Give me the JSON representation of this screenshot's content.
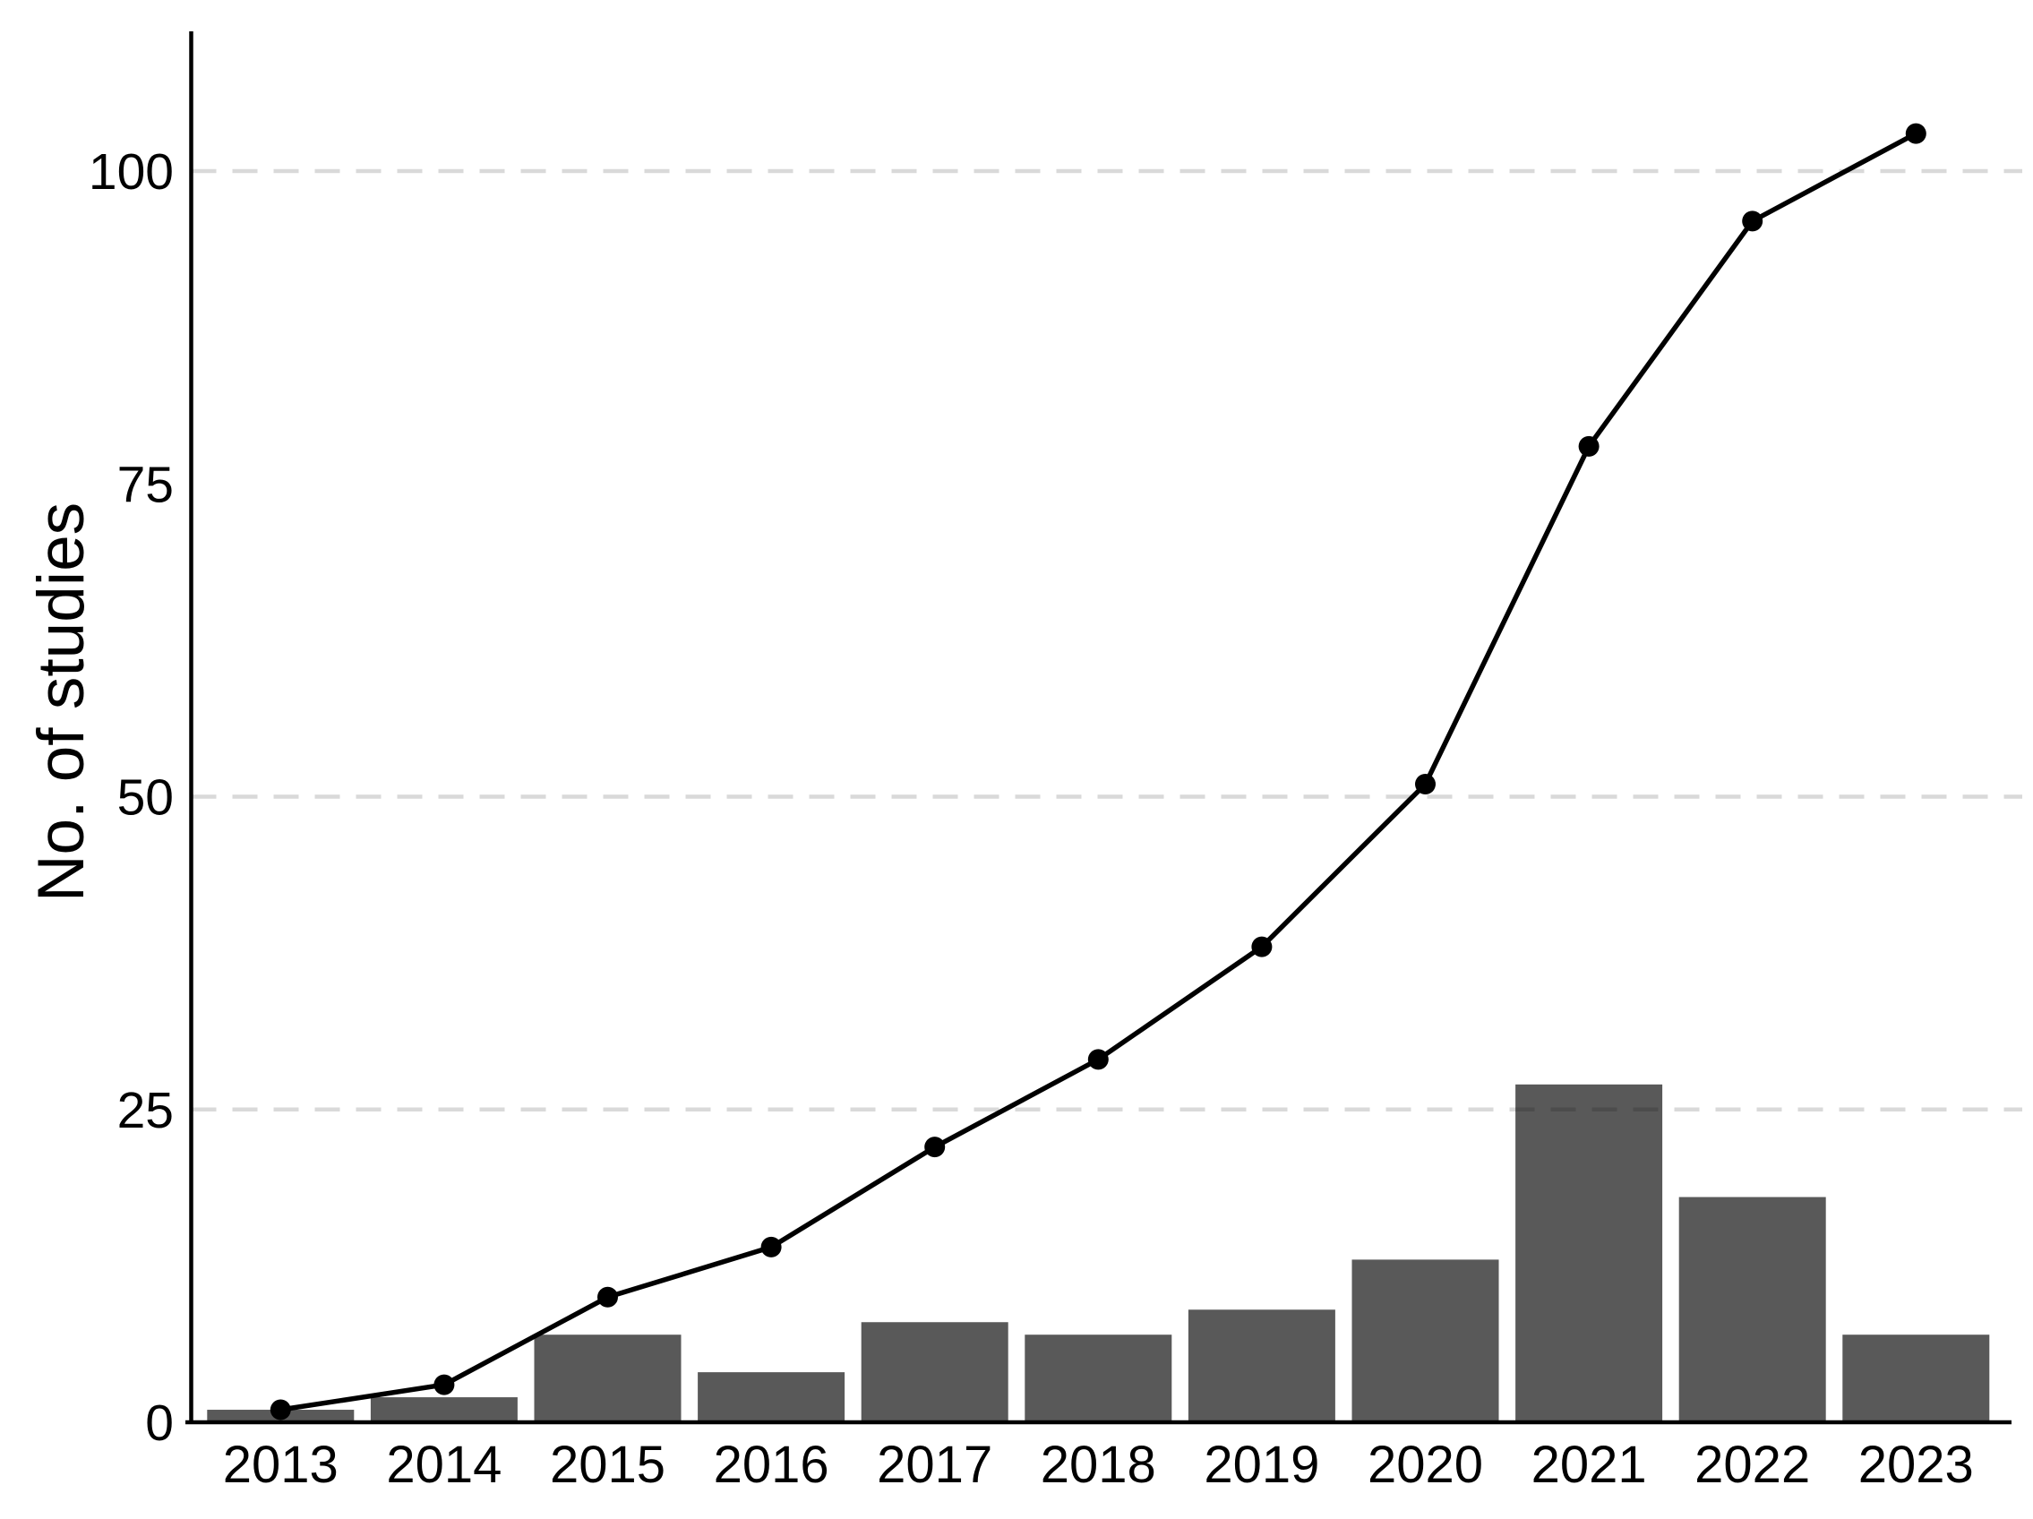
{
  "chart_data": {
    "type": "bar",
    "subtype": "combo-bar-line",
    "title": "",
    "xlabel": "",
    "ylabel": "No. of studies",
    "categories": [
      "2013",
      "2014",
      "2015",
      "2016",
      "2017",
      "2018",
      "2019",
      "2020",
      "2021",
      "2022",
      "2023"
    ],
    "series": [
      {
        "name": "bars-studies-per-year",
        "type": "bar",
        "values": [
          1,
          2,
          7,
          4,
          8,
          7,
          9,
          13,
          27,
          18,
          7
        ]
      },
      {
        "name": "line-cumulative-studies",
        "type": "line",
        "values": [
          1,
          3,
          10,
          14,
          22,
          29,
          38,
          51,
          78,
          96,
          103
        ]
      }
    ],
    "ylim": [
      0,
      111
    ],
    "yticks": [
      0,
      25,
      50,
      75,
      100
    ],
    "gridline_values": [
      25,
      50,
      100
    ],
    "grid_style": "horizontal dashed",
    "legend_position": "none",
    "colors": {
      "bar_fill": "rgba(0,0,0,0.651)",
      "bar_fill_flat": "#595959",
      "line": "#000000",
      "point": "#000000",
      "gridline": "#d9d9d9",
      "axis": "#000000",
      "text": "#000000",
      "background": "#ffffff"
    }
  }
}
